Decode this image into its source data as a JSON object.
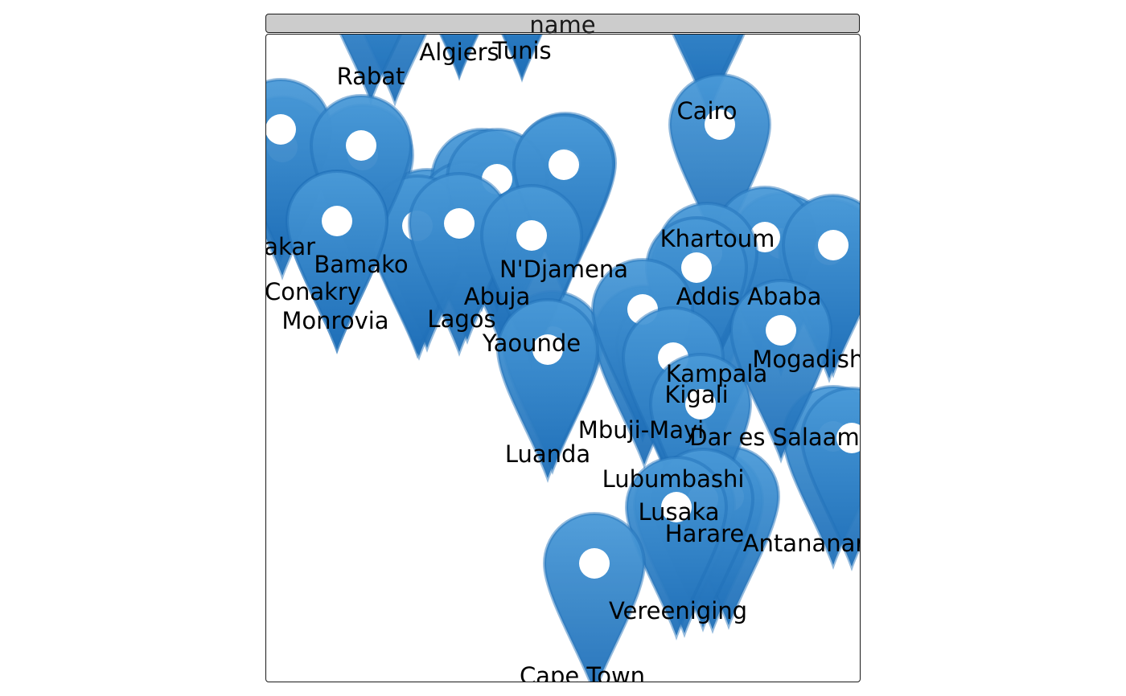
{
  "facet": {
    "label": "name"
  },
  "colors": {
    "marker": "#2f86d1",
    "marker_dark": "#1f6fb8",
    "marker_hole": "#ffffff"
  },
  "markers": [
    {
      "name": "Rabat"
    },
    {
      "name": "Algiers"
    },
    {
      "name": "Tunis"
    },
    {
      "name": "Cairo"
    },
    {
      "name": "Dakar"
    },
    {
      "name": "Bamako"
    },
    {
      "name": "Conakry"
    },
    {
      "name": "Monrovia"
    },
    {
      "name": "Abuja"
    },
    {
      "name": "Lagos"
    },
    {
      "name": "N'Djamena"
    },
    {
      "name": "Yaounde"
    },
    {
      "name": "Khartoum"
    },
    {
      "name": "Addis Ababa"
    },
    {
      "name": "Mogadishu"
    },
    {
      "name": "Kampala"
    },
    {
      "name": "Kigali"
    },
    {
      "name": "Mbuji-Mayi"
    },
    {
      "name": "Dar es Salaam"
    },
    {
      "name": "Luanda"
    },
    {
      "name": "Lubumbashi"
    },
    {
      "name": "Lusaka"
    },
    {
      "name": "Harare"
    },
    {
      "name": "Antananarivo"
    },
    {
      "name": "Vereeniging"
    },
    {
      "name": "Cape Town"
    }
  ]
}
